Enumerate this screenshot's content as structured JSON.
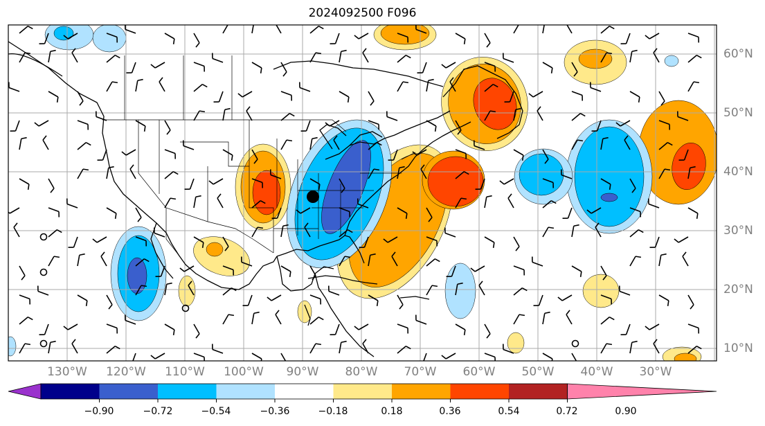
{
  "title": "2024092500 F096",
  "lat_labels": [
    "60°N",
    "50°N",
    "40°N",
    "30°N",
    "20°N",
    "10°N"
  ],
  "lon_labels": [
    "130°W",
    "120°W",
    "110°W",
    "100°W",
    "90°W",
    "80°W",
    "70°W",
    "60°W",
    "50°W",
    "40°W",
    "30°W"
  ],
  "colorbar": {
    "ticks": [
      "−0.90",
      "−0.72",
      "−0.54",
      "−0.36",
      "−0.18",
      "0.18",
      "0.36",
      "0.54",
      "0.72",
      "0.90"
    ],
    "colors": [
      "#9a32cd",
      "#00008b",
      "#3a5fcd",
      "#00bfff",
      "#b0e2ff",
      "#ffffff",
      "#ffe98a",
      "#ffa500",
      "#ff4500",
      "#b22222",
      "#ff82ab"
    ]
  },
  "map_colors": {
    "strong_positive": "#ff4500",
    "positive": "#ffa500",
    "weak_positive": "#ffe98a",
    "weak_negative": "#b0e2ff",
    "negative": "#00bfff",
    "strong_negative": "#3a5fcd",
    "marker": "#000000"
  }
}
